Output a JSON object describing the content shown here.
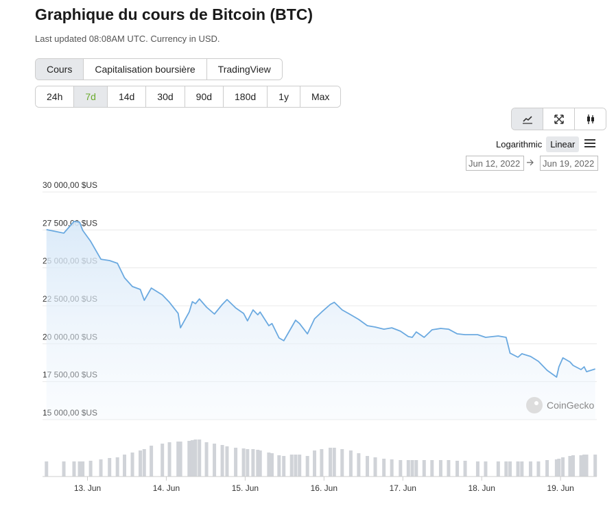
{
  "header": {
    "title": "Graphique du cours de Bitcoin (BTC)",
    "subtitle": "Last updated 08:08AM UTC. Currency in USD."
  },
  "tabs": {
    "items": [
      "Cours",
      "Capitalisation boursière",
      "TradingView"
    ],
    "active": 0
  },
  "ranges": {
    "items": [
      "24h",
      "7d",
      "14d",
      "30d",
      "90d",
      "180d",
      "1y",
      "Max"
    ],
    "active": 1
  },
  "scale_options": {
    "items": [
      "Logarithmic",
      "Linear"
    ],
    "active": 1
  },
  "date_range": {
    "from": "Jun 12, 2022",
    "to": "Jun 19, 2022"
  },
  "watermark": "CoinGecko",
  "chart_data": {
    "type": "line",
    "x": [
      12.48,
      12.7,
      12.83,
      12.9,
      12.94,
      13.04,
      13.17,
      13.28,
      13.38,
      13.47,
      13.57,
      13.67,
      13.72,
      13.81,
      13.95,
      14.04,
      14.15,
      14.18,
      14.29,
      14.33,
      14.37,
      14.42,
      14.51,
      14.61,
      14.71,
      14.77,
      14.88,
      14.98,
      15.03,
      15.1,
      15.16,
      15.19,
      15.3,
      15.34,
      15.43,
      15.49,
      15.59,
      15.64,
      15.69,
      15.79,
      15.88,
      15.97,
      16.08,
      16.13,
      16.23,
      16.34,
      16.44,
      16.55,
      16.65,
      16.76,
      16.86,
      16.97,
      17.07,
      17.12,
      17.17,
      17.27,
      17.37,
      17.48,
      17.58,
      17.69,
      17.79,
      17.95,
      18.05,
      18.21,
      18.31,
      18.36,
      18.46,
      18.51,
      18.62,
      18.72,
      18.83,
      18.95,
      18.98,
      19.03,
      19.12,
      19.16,
      19.26,
      19.3,
      19.33,
      19.44
    ],
    "series": [
      {
        "color": "#6aa9e0",
        "values": [
          27520,
          27290,
          28060,
          28010,
          27470,
          26750,
          25570,
          25480,
          25300,
          24350,
          23770,
          23580,
          22860,
          23670,
          23220,
          22730,
          22000,
          21050,
          22090,
          22770,
          22640,
          22950,
          22410,
          21960,
          22590,
          22910,
          22360,
          22000,
          21510,
          22230,
          21910,
          22090,
          21190,
          21330,
          20380,
          20200,
          21100,
          21550,
          21330,
          20650,
          21640,
          22090,
          22590,
          22730,
          22230,
          21910,
          21600,
          21190,
          21100,
          20960,
          21050,
          20830,
          20470,
          20420,
          20780,
          20420,
          20920,
          21010,
          20960,
          20650,
          20600,
          20600,
          20420,
          20510,
          20420,
          19380,
          19110,
          19340,
          19160,
          18840,
          18250,
          17800,
          18480,
          19070,
          18800,
          18570,
          18300,
          18480,
          18160,
          18340
        ]
      }
    ],
    "volume": {
      "color": "#d0d3d8",
      "lim": [
        0,
        100
      ],
      "values": [
        22,
        22,
        22,
        22,
        22,
        23,
        25,
        27,
        28,
        32,
        35,
        38,
        40,
        45,
        48,
        50,
        51,
        51,
        52,
        53,
        54,
        54,
        50,
        48,
        46,
        44,
        42,
        41,
        40,
        40,
        39,
        38,
        35,
        34,
        31,
        30,
        32,
        32,
        32,
        30,
        38,
        40,
        42,
        42,
        40,
        38,
        34,
        30,
        28,
        26,
        25,
        24,
        24,
        24,
        24,
        24,
        24,
        24,
        24,
        23,
        23,
        22,
        22,
        22,
        22,
        22,
        22,
        22,
        22,
        22,
        24,
        25,
        26,
        28,
        30,
        31,
        31,
        32,
        32,
        32
      ]
    },
    "xlim": [
      12.43,
      19.46
    ],
    "xticks": [
      {
        "value": 13,
        "label": "13. Jun"
      },
      {
        "value": 14,
        "label": "14. Jun"
      },
      {
        "value": 15,
        "label": "15. Jun"
      },
      {
        "value": 16,
        "label": "16. Jun"
      },
      {
        "value": 17,
        "label": "17. Jun"
      },
      {
        "value": 18,
        "label": "18. Jun"
      },
      {
        "value": 19,
        "label": "19. Jun"
      }
    ],
    "ylim": [
      15000,
      30000
    ],
    "yticks": [
      {
        "value": 15000,
        "label": "15 000,00 $US"
      },
      {
        "value": 17500,
        "label": "17 500,00 $US"
      },
      {
        "value": 20000,
        "label": "20 000,00 $US"
      },
      {
        "value": 22500,
        "label": "22 500,00 $US"
      },
      {
        "value": 25000,
        "label": "25 000,00 $US"
      },
      {
        "value": 27500,
        "label": "27 500,00 $US"
      },
      {
        "value": 30000,
        "label": "30 000,00 $US"
      }
    ],
    "grid": true
  }
}
